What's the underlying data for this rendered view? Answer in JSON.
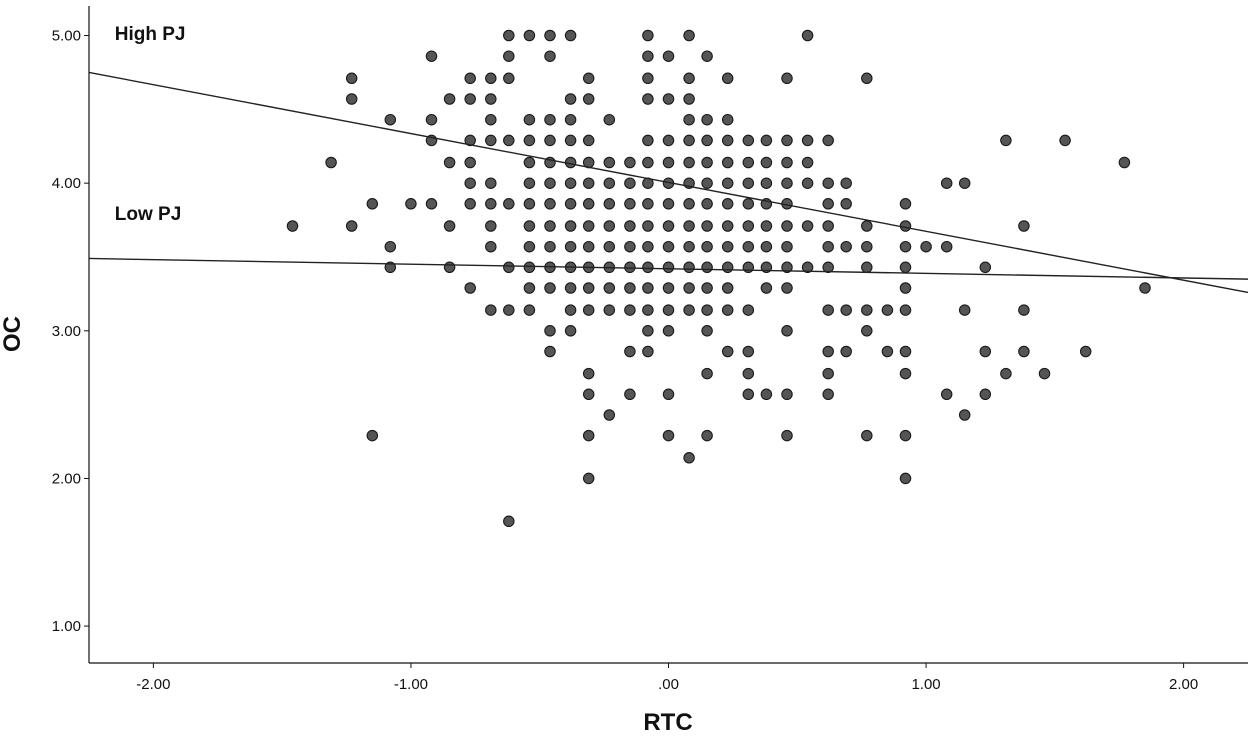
{
  "chart_data": {
    "type": "scatter",
    "xlabel": "RTC",
    "ylabel": "OC",
    "xlim": [
      -2.25,
      2.25
    ],
    "ylim": [
      0.75,
      5.2
    ],
    "xticks": [
      -2,
      -1,
      0,
      1,
      2
    ],
    "xtick_labels": [
      "-2.00",
      "-1.00",
      ".00",
      "1.00",
      "2.00"
    ],
    "yticks": [
      1,
      2,
      3,
      4,
      5
    ],
    "ytick_labels": [
      "1.00",
      "2.00",
      "3.00",
      "4.00",
      "5.00"
    ],
    "grid": false,
    "point_color": "#555555",
    "line_color": "#222222",
    "annotations": [
      {
        "key": "high",
        "text": "High PJ",
        "x": -2.15,
        "y": 4.97
      },
      {
        "key": "low",
        "text": "Low PJ",
        "x": -2.15,
        "y": 3.75
      }
    ],
    "fit_lines": [
      {
        "key": "high",
        "x": [
          -2.25,
          2.25
        ],
        "y": [
          4.75,
          3.26
        ]
      },
      {
        "key": "low",
        "x": [
          -2.25,
          2.25
        ],
        "y": [
          3.49,
          3.35
        ]
      }
    ],
    "points": [
      [
        -1.46,
        3.71
      ],
      [
        -1.31,
        4.14
      ],
      [
        -1.23,
        4.71
      ],
      [
        -1.23,
        4.57
      ],
      [
        -1.23,
        3.71
      ],
      [
        -1.15,
        3.86
      ],
      [
        -1.15,
        2.29
      ],
      [
        -1.08,
        4.43
      ],
      [
        -1.08,
        3.57
      ],
      [
        -1.08,
        3.43
      ],
      [
        -1.0,
        3.86
      ],
      [
        -0.92,
        4.86
      ],
      [
        -0.92,
        4.43
      ],
      [
        -0.92,
        4.29
      ],
      [
        -0.92,
        3.86
      ],
      [
        -0.85,
        4.57
      ],
      [
        -0.85,
        4.14
      ],
      [
        -0.85,
        3.71
      ],
      [
        -0.85,
        3.43
      ],
      [
        -0.77,
        4.71
      ],
      [
        -0.77,
        4.57
      ],
      [
        -0.77,
        4.29
      ],
      [
        -0.77,
        4.14
      ],
      [
        -0.77,
        4.0
      ],
      [
        -0.77,
        3.86
      ],
      [
        -0.77,
        3.29
      ],
      [
        -0.69,
        4.71
      ],
      [
        -0.69,
        4.57
      ],
      [
        -0.69,
        4.43
      ],
      [
        -0.69,
        4.29
      ],
      [
        -0.69,
        4.0
      ],
      [
        -0.69,
        3.86
      ],
      [
        -0.69,
        3.71
      ],
      [
        -0.69,
        3.57
      ],
      [
        -0.69,
        3.14
      ],
      [
        -0.62,
        5.0
      ],
      [
        -0.62,
        4.86
      ],
      [
        -0.62,
        4.71
      ],
      [
        -0.62,
        4.29
      ],
      [
        -0.62,
        3.86
      ],
      [
        -0.62,
        3.43
      ],
      [
        -0.62,
        3.14
      ],
      [
        -0.62,
        1.71
      ],
      [
        -0.54,
        5.0
      ],
      [
        -0.54,
        4.43
      ],
      [
        -0.54,
        4.29
      ],
      [
        -0.54,
        4.14
      ],
      [
        -0.54,
        4.0
      ],
      [
        -0.54,
        3.86
      ],
      [
        -0.54,
        3.71
      ],
      [
        -0.54,
        3.57
      ],
      [
        -0.54,
        3.43
      ],
      [
        -0.54,
        3.29
      ],
      [
        -0.54,
        3.14
      ],
      [
        -0.46,
        5.0
      ],
      [
        -0.46,
        4.86
      ],
      [
        -0.46,
        4.43
      ],
      [
        -0.46,
        4.29
      ],
      [
        -0.46,
        4.14
      ],
      [
        -0.46,
        4.0
      ],
      [
        -0.46,
        3.86
      ],
      [
        -0.46,
        3.71
      ],
      [
        -0.46,
        3.57
      ],
      [
        -0.46,
        3.43
      ],
      [
        -0.46,
        3.29
      ],
      [
        -0.46,
        3.0
      ],
      [
        -0.46,
        2.86
      ],
      [
        -0.38,
        5.0
      ],
      [
        -0.38,
        4.57
      ],
      [
        -0.38,
        4.43
      ],
      [
        -0.38,
        4.29
      ],
      [
        -0.38,
        4.14
      ],
      [
        -0.38,
        4.0
      ],
      [
        -0.38,
        3.86
      ],
      [
        -0.38,
        3.71
      ],
      [
        -0.38,
        3.57
      ],
      [
        -0.38,
        3.43
      ],
      [
        -0.38,
        3.29
      ],
      [
        -0.38,
        3.14
      ],
      [
        -0.38,
        3.0
      ],
      [
        -0.31,
        4.71
      ],
      [
        -0.31,
        4.57
      ],
      [
        -0.31,
        4.29
      ],
      [
        -0.31,
        4.14
      ],
      [
        -0.31,
        4.0
      ],
      [
        -0.31,
        3.86
      ],
      [
        -0.31,
        3.71
      ],
      [
        -0.31,
        3.57
      ],
      [
        -0.31,
        3.43
      ],
      [
        -0.31,
        3.29
      ],
      [
        -0.31,
        3.14
      ],
      [
        -0.31,
        2.71
      ],
      [
        -0.31,
        2.57
      ],
      [
        -0.31,
        2.29
      ],
      [
        -0.31,
        2.0
      ],
      [
        -0.23,
        4.43
      ],
      [
        -0.23,
        4.14
      ],
      [
        -0.23,
        4.0
      ],
      [
        -0.23,
        3.86
      ],
      [
        -0.23,
        3.71
      ],
      [
        -0.23,
        3.57
      ],
      [
        -0.23,
        3.43
      ],
      [
        -0.23,
        3.29
      ],
      [
        -0.23,
        3.14
      ],
      [
        -0.23,
        2.43
      ],
      [
        -0.15,
        4.14
      ],
      [
        -0.15,
        4.0
      ],
      [
        -0.15,
        3.86
      ],
      [
        -0.15,
        3.71
      ],
      [
        -0.15,
        3.57
      ],
      [
        -0.15,
        3.43
      ],
      [
        -0.15,
        3.29
      ],
      [
        -0.15,
        3.14
      ],
      [
        -0.15,
        2.86
      ],
      [
        -0.15,
        2.57
      ],
      [
        -0.08,
        5.0
      ],
      [
        -0.08,
        4.86
      ],
      [
        -0.08,
        4.71
      ],
      [
        -0.08,
        4.57
      ],
      [
        -0.08,
        4.29
      ],
      [
        -0.08,
        4.14
      ],
      [
        -0.08,
        4.0
      ],
      [
        -0.08,
        3.86
      ],
      [
        -0.08,
        3.71
      ],
      [
        -0.08,
        3.57
      ],
      [
        -0.08,
        3.43
      ],
      [
        -0.08,
        3.29
      ],
      [
        -0.08,
        3.14
      ],
      [
        -0.08,
        3.0
      ],
      [
        -0.08,
        2.86
      ],
      [
        0.0,
        4.86
      ],
      [
        0.0,
        4.57
      ],
      [
        0.0,
        4.29
      ],
      [
        0.0,
        4.14
      ],
      [
        0.0,
        4.0
      ],
      [
        0.0,
        3.86
      ],
      [
        0.0,
        3.71
      ],
      [
        0.0,
        3.57
      ],
      [
        0.0,
        3.43
      ],
      [
        0.0,
        3.29
      ],
      [
        0.0,
        3.14
      ],
      [
        0.0,
        3.0
      ],
      [
        0.0,
        2.57
      ],
      [
        0.0,
        2.29
      ],
      [
        0.08,
        5.0
      ],
      [
        0.08,
        4.71
      ],
      [
        0.08,
        4.57
      ],
      [
        0.08,
        4.43
      ],
      [
        0.08,
        4.29
      ],
      [
        0.08,
        4.14
      ],
      [
        0.08,
        4.0
      ],
      [
        0.08,
        3.86
      ],
      [
        0.08,
        3.71
      ],
      [
        0.08,
        3.57
      ],
      [
        0.08,
        3.43
      ],
      [
        0.08,
        3.29
      ],
      [
        0.08,
        3.14
      ],
      [
        0.08,
        2.14
      ],
      [
        0.15,
        4.86
      ],
      [
        0.15,
        4.43
      ],
      [
        0.15,
        4.29
      ],
      [
        0.15,
        4.14
      ],
      [
        0.15,
        4.0
      ],
      [
        0.15,
        3.86
      ],
      [
        0.15,
        3.71
      ],
      [
        0.15,
        3.57
      ],
      [
        0.15,
        3.43
      ],
      [
        0.15,
        3.29
      ],
      [
        0.15,
        3.14
      ],
      [
        0.15,
        3.0
      ],
      [
        0.15,
        2.71
      ],
      [
        0.15,
        2.29
      ],
      [
        0.23,
        4.71
      ],
      [
        0.23,
        4.43
      ],
      [
        0.23,
        4.29
      ],
      [
        0.23,
        4.14
      ],
      [
        0.23,
        4.0
      ],
      [
        0.23,
        3.86
      ],
      [
        0.23,
        3.71
      ],
      [
        0.23,
        3.57
      ],
      [
        0.23,
        3.43
      ],
      [
        0.23,
        3.29
      ],
      [
        0.23,
        3.14
      ],
      [
        0.23,
        2.86
      ],
      [
        0.31,
        4.29
      ],
      [
        0.31,
        4.14
      ],
      [
        0.31,
        4.0
      ],
      [
        0.31,
        3.86
      ],
      [
        0.31,
        3.71
      ],
      [
        0.31,
        3.57
      ],
      [
        0.31,
        3.43
      ],
      [
        0.31,
        3.14
      ],
      [
        0.31,
        2.86
      ],
      [
        0.31,
        2.71
      ],
      [
        0.31,
        2.57
      ],
      [
        0.38,
        4.29
      ],
      [
        0.38,
        4.14
      ],
      [
        0.38,
        4.0
      ],
      [
        0.38,
        3.86
      ],
      [
        0.38,
        3.71
      ],
      [
        0.38,
        3.57
      ],
      [
        0.38,
        3.43
      ],
      [
        0.38,
        3.29
      ],
      [
        0.38,
        2.57
      ],
      [
        0.46,
        4.71
      ],
      [
        0.46,
        4.29
      ],
      [
        0.46,
        4.14
      ],
      [
        0.46,
        4.0
      ],
      [
        0.46,
        3.86
      ],
      [
        0.46,
        3.71
      ],
      [
        0.46,
        3.57
      ],
      [
        0.46,
        3.43
      ],
      [
        0.46,
        3.29
      ],
      [
        0.46,
        3.0
      ],
      [
        0.46,
        2.57
      ],
      [
        0.46,
        2.29
      ],
      [
        0.54,
        5.0
      ],
      [
        0.54,
        4.29
      ],
      [
        0.54,
        4.14
      ],
      [
        0.54,
        4.0
      ],
      [
        0.54,
        3.71
      ],
      [
        0.54,
        3.43
      ],
      [
        0.62,
        4.29
      ],
      [
        0.62,
        4.0
      ],
      [
        0.62,
        3.86
      ],
      [
        0.62,
        3.71
      ],
      [
        0.62,
        3.57
      ],
      [
        0.62,
        3.43
      ],
      [
        0.62,
        3.14
      ],
      [
        0.62,
        2.86
      ],
      [
        0.62,
        2.71
      ],
      [
        0.62,
        2.57
      ],
      [
        0.69,
        4.0
      ],
      [
        0.69,
        3.86
      ],
      [
        0.69,
        3.57
      ],
      [
        0.69,
        3.14
      ],
      [
        0.69,
        2.86
      ],
      [
        0.77,
        4.71
      ],
      [
        0.77,
        3.71
      ],
      [
        0.77,
        3.57
      ],
      [
        0.77,
        3.43
      ],
      [
        0.77,
        3.14
      ],
      [
        0.77,
        3.0
      ],
      [
        0.77,
        2.29
      ],
      [
        0.85,
        3.14
      ],
      [
        0.85,
        2.86
      ],
      [
        0.92,
        3.86
      ],
      [
        0.92,
        3.71
      ],
      [
        0.92,
        3.57
      ],
      [
        0.92,
        3.43
      ],
      [
        0.92,
        3.29
      ],
      [
        0.92,
        3.14
      ],
      [
        0.92,
        2.86
      ],
      [
        0.92,
        2.71
      ],
      [
        0.92,
        2.29
      ],
      [
        0.92,
        2.0
      ],
      [
        1.0,
        3.57
      ],
      [
        1.08,
        4.0
      ],
      [
        1.08,
        3.57
      ],
      [
        1.08,
        2.57
      ],
      [
        1.15,
        4.0
      ],
      [
        1.15,
        3.14
      ],
      [
        1.15,
        2.43
      ],
      [
        1.23,
        3.43
      ],
      [
        1.23,
        2.86
      ],
      [
        1.23,
        2.57
      ],
      [
        1.31,
        4.29
      ],
      [
        1.31,
        2.71
      ],
      [
        1.38,
        3.71
      ],
      [
        1.38,
        3.14
      ],
      [
        1.38,
        2.86
      ],
      [
        1.46,
        2.71
      ],
      [
        1.54,
        4.29
      ],
      [
        1.62,
        2.86
      ],
      [
        1.77,
        4.14
      ],
      [
        1.85,
        3.29
      ]
    ]
  }
}
